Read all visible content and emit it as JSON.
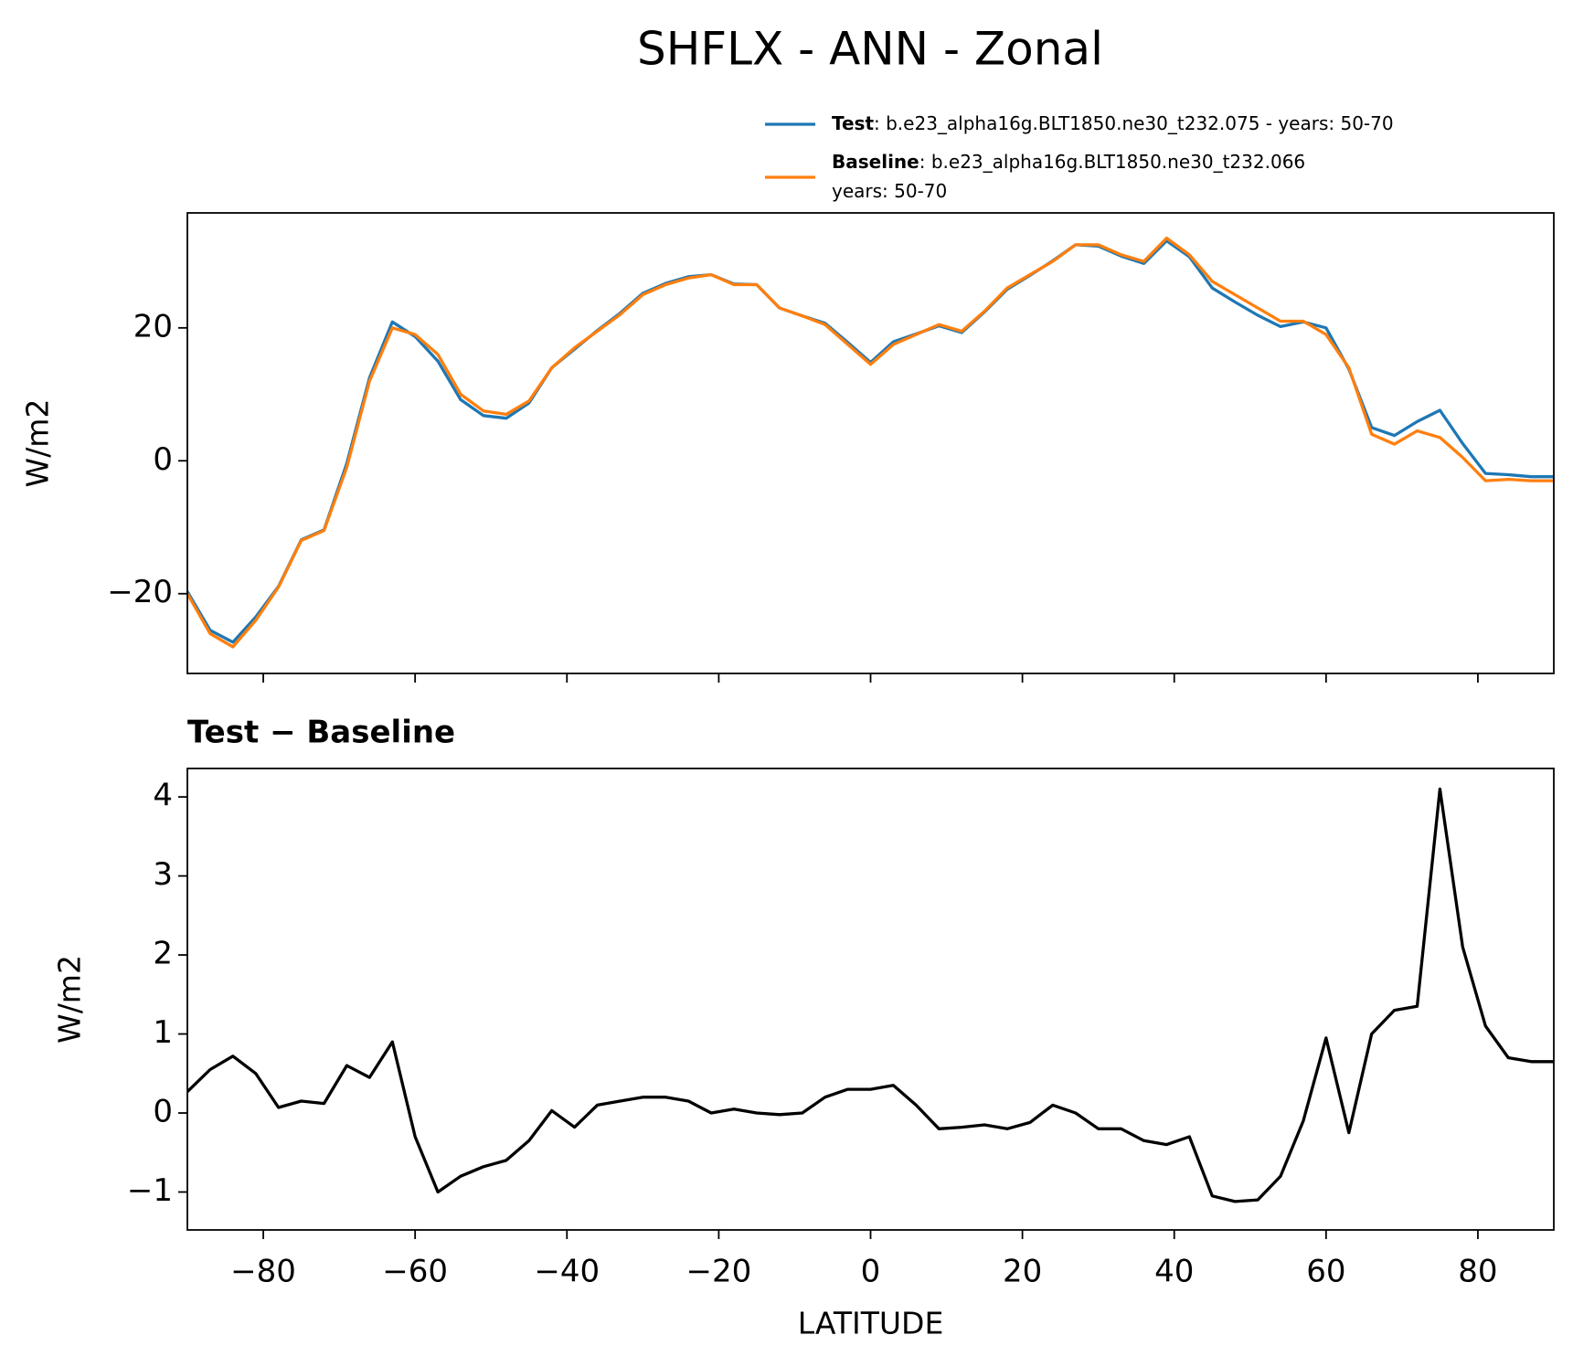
{
  "title": "SHFLX - ANN - Zonal",
  "chart_data": [
    {
      "type": "line",
      "x": [
        -90,
        -87,
        -84,
        -81,
        -78,
        -75,
        -72,
        -69,
        -66,
        -63,
        -60,
        -57,
        -54,
        -51,
        -48,
        -45,
        -42,
        -39,
        -36,
        -33,
        -30,
        -27,
        -24,
        -21,
        -18,
        -15,
        -12,
        -9,
        -6,
        -3,
        0,
        3,
        6,
        9,
        12,
        15,
        18,
        21,
        24,
        27,
        30,
        33,
        36,
        39,
        42,
        45,
        48,
        51,
        54,
        57,
        60,
        63,
        66,
        69,
        72,
        75,
        78,
        81,
        84,
        87,
        90
      ],
      "series": [
        {
          "name": "Test",
          "desc": [
            ": b.e23_alpha16g.BLT1850.ne30_t232.075 - years: 50-70"
          ],
          "color": "#1f77b4",
          "values": [
            -19.7,
            -25.5,
            -27.3,
            -23.5,
            -18.9,
            -11.9,
            -10.4,
            -0.4,
            12.5,
            20.9,
            18.7,
            15.0,
            9.2,
            6.8,
            6.4,
            8.7,
            14.0,
            16.8,
            19.6,
            22.2,
            25.2,
            26.7,
            27.7,
            28.0,
            26.6,
            26.5,
            23.0,
            21.8,
            20.7,
            17.8,
            14.8,
            17.9,
            19.1,
            20.3,
            19.3,
            22.4,
            25.8,
            27.9,
            30.1,
            32.5,
            32.3,
            30.8,
            29.7,
            33.1,
            30.7,
            26.0,
            23.9,
            21.9,
            20.2,
            20.9,
            20.0,
            13.8,
            5.0,
            3.8,
            5.9,
            7.6,
            2.6,
            -1.9,
            -2.1,
            -2.4,
            -2.4
          ]
        },
        {
          "name": "Baseline",
          "desc": [
            ": b.e23_alpha16g.BLT1850.ne30_t232.066",
            "years: 50-70"
          ],
          "color": "#ff7f0e",
          "values": [
            -20,
            -26,
            -28,
            -24,
            -19,
            -12,
            -10.5,
            -1,
            12,
            20,
            19,
            16,
            10,
            7.5,
            7,
            9,
            14,
            17,
            19.5,
            22,
            25,
            26.5,
            27.5,
            28,
            26.5,
            26.5,
            23,
            21.8,
            20.5,
            17.5,
            14.5,
            17.5,
            19,
            20.5,
            19.5,
            22.5,
            26,
            28,
            30,
            32.5,
            32.5,
            31,
            30,
            33.5,
            31,
            27,
            25,
            23,
            21,
            21,
            19,
            14,
            4,
            2.5,
            4.5,
            3.5,
            0.5,
            -3,
            -2.8,
            -3,
            -3
          ]
        }
      ],
      "ylabel": "W/m2",
      "xlim": [
        -90,
        90
      ],
      "xticks": [
        -80,
        -60,
        -40,
        -20,
        0,
        20,
        40,
        60,
        80
      ],
      "ylim": [
        -32,
        37.3
      ],
      "yticks": [
        {
          "value": -20,
          "label": "−20"
        },
        0,
        20
      ],
      "grid": false
    },
    {
      "type": "line",
      "title": "Test − Baseline",
      "x": [
        -90,
        -87,
        -84,
        -81,
        -78,
        -75,
        -72,
        -69,
        -66,
        -63,
        -60,
        -57,
        -54,
        -51,
        -48,
        -45,
        -42,
        -39,
        -36,
        -33,
        -30,
        -27,
        -24,
        -21,
        -18,
        -15,
        -12,
        -9,
        -6,
        -3,
        0,
        3,
        6,
        9,
        12,
        15,
        18,
        21,
        24,
        27,
        30,
        33,
        36,
        39,
        42,
        45,
        48,
        51,
        54,
        57,
        60,
        63,
        66,
        69,
        72,
        75,
        78,
        81,
        84,
        87,
        90
      ],
      "series": [
        {
          "color": "#000000",
          "values": [
            0.27,
            0.55,
            0.72,
            0.5,
            0.07,
            0.15,
            0.12,
            0.6,
            0.45,
            0.9,
            -0.3,
            -1.0,
            -0.8,
            -0.68,
            -0.6,
            -0.35,
            0.03,
            -0.18,
            0.1,
            0.15,
            0.2,
            0.2,
            0.15,
            0.0,
            0.05,
            0.0,
            -0.02,
            0.0,
            0.2,
            0.3,
            0.3,
            0.35,
            0.1,
            -0.2,
            -0.18,
            -0.15,
            -0.2,
            -0.12,
            0.1,
            0.0,
            -0.2,
            -0.2,
            -0.35,
            -0.4,
            -0.3,
            -1.05,
            -1.12,
            -1.1,
            -0.8,
            -0.1,
            0.95,
            -0.25,
            1.0,
            1.3,
            1.35,
            4.1,
            2.1,
            1.1,
            0.7,
            0.65,
            0.65
          ]
        }
      ],
      "xlabel": "LATITUDE",
      "ylabel": "W/m2",
      "xlim": [
        -90,
        90
      ],
      "xticks": [
        {
          "value": -80,
          "label": "−80"
        },
        {
          "value": -60,
          "label": "−60"
        },
        {
          "value": -40,
          "label": "−40"
        },
        {
          "value": -20,
          "label": "−20"
        },
        0,
        20,
        40,
        60,
        80
      ],
      "ylim": [
        -1.48,
        4.36
      ],
      "yticks": [
        {
          "value": -1,
          "label": "−1"
        },
        0,
        1,
        2,
        3,
        4
      ],
      "grid": false
    }
  ]
}
